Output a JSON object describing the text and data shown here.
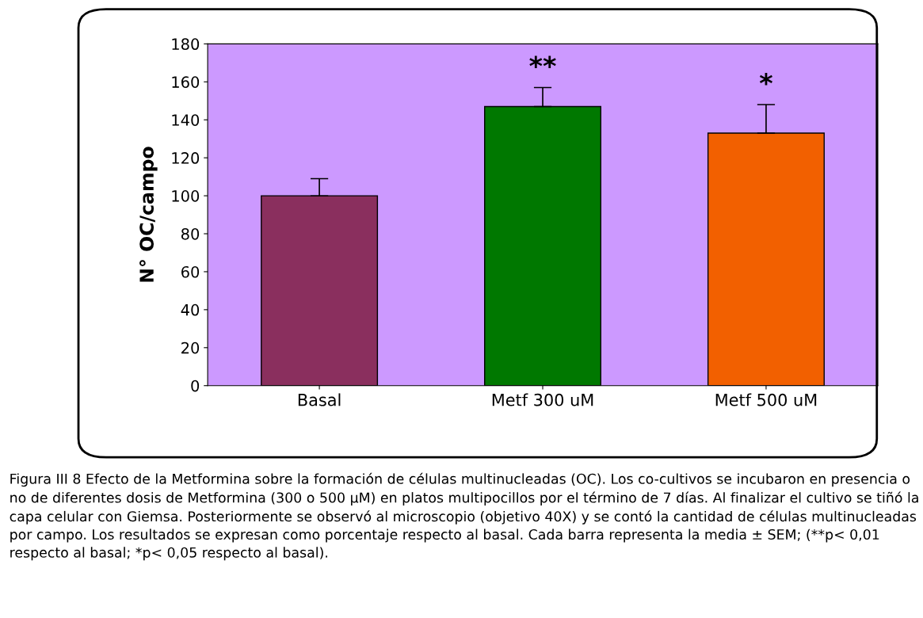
{
  "chart_data": {
    "type": "bar",
    "ylabel": "N° OC/campo",
    "categories": [
      "Basal",
      "Metf 300 uM",
      "Metf 500 uM"
    ],
    "values": [
      100,
      147,
      133
    ],
    "errors": [
      9,
      10,
      15
    ],
    "colors": [
      "#8a2f5e",
      "#007800",
      "#f26000"
    ],
    "ylim": [
      0,
      180
    ],
    "yticks": [
      0,
      20,
      40,
      60,
      80,
      100,
      120,
      140,
      160,
      180
    ],
    "grid": false,
    "legend": false,
    "annotations": [
      {
        "text": "**",
        "x": "Metf 300 uM",
        "y": 157
      },
      {
        "text": "*",
        "x": "Metf 500 uM",
        "y": 148
      },
      "Figura III 8 Efecto de la Metformina sobre la formación de células multinucleadas (OC). Los co-cultivos se incubaron en presencia o no de diferentes dosis de Metformina (300 o 500 μM) en platos multipocillos por el término de 7 días. Al finalizar el cultivo se tiñó la capa celular con Giemsa. Posteriormente se observó al microscopio (objetivo 40X) y se contó la cantidad de células multinucleadas por campo. Los resultados se expresan como porcentaje respecto al basal. Cada barra representa la media ± SEM; (**p< 0,01 respecto al basal; *p< 0,05 respecto al basal)."
    ]
  }
}
